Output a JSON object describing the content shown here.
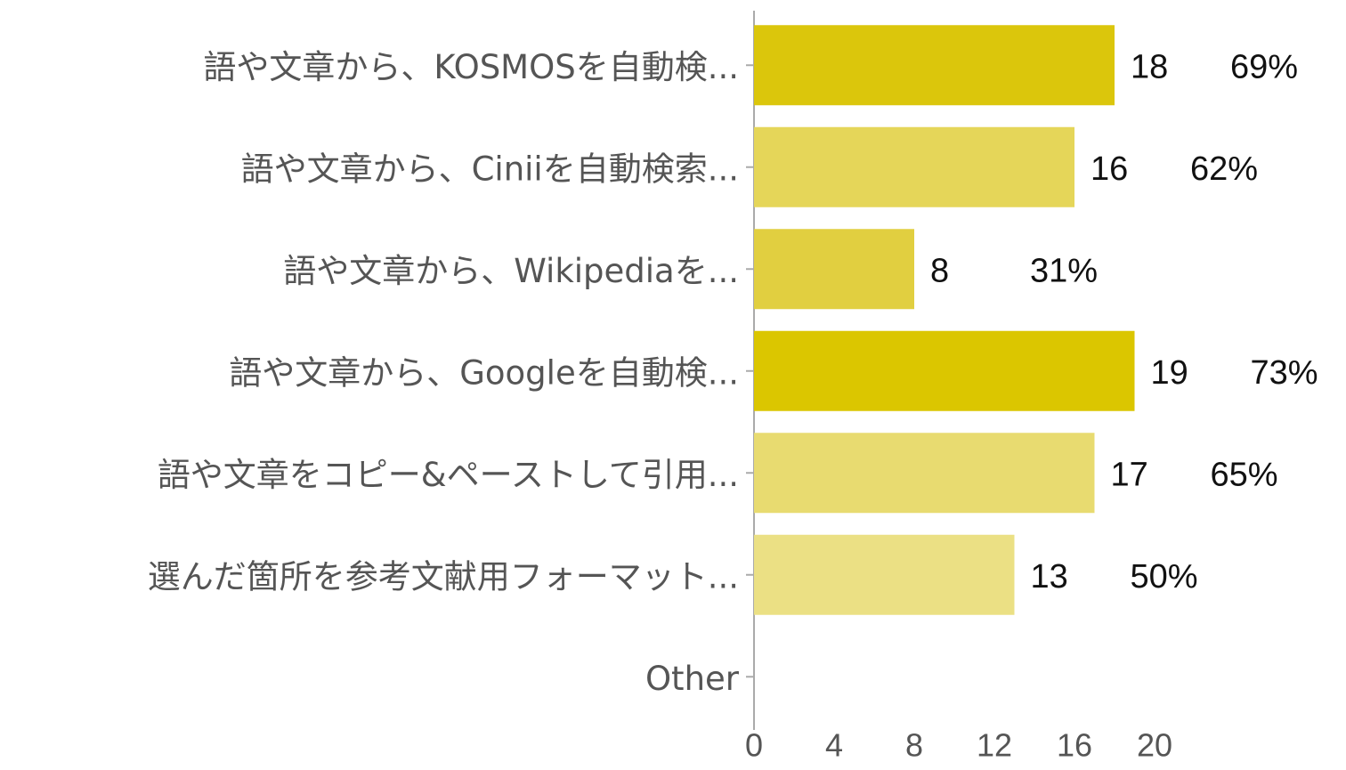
{
  "chart_data": {
    "type": "bar",
    "orientation": "horizontal",
    "categories": [
      "語や文章から、KOSMOSを自動検...",
      "語や文章から、Ciniiを自動検索...",
      "語や文章から、Wikipediaを...",
      "語や文章から、Googleを自動検...",
      "語や文章をコピー&ペーストして引用...",
      "選んだ箇所を参考文献用フォーマット...",
      "Other"
    ],
    "values": [
      18,
      16,
      8,
      19,
      17,
      13,
      null
    ],
    "percents": [
      69,
      62,
      31,
      73,
      65,
      50,
      null
    ],
    "percent_labels": [
      "69%",
      "62%",
      "31%",
      "73%",
      "65%",
      "50%",
      null
    ],
    "colors": [
      "#dbc60c",
      "#e5d659",
      "#e1cf40",
      "#dbc600",
      "#e8db70",
      "#ebe084",
      null
    ],
    "xlim": [
      0,
      20
    ],
    "xticks": [
      0,
      4,
      8,
      12,
      16,
      20
    ]
  }
}
